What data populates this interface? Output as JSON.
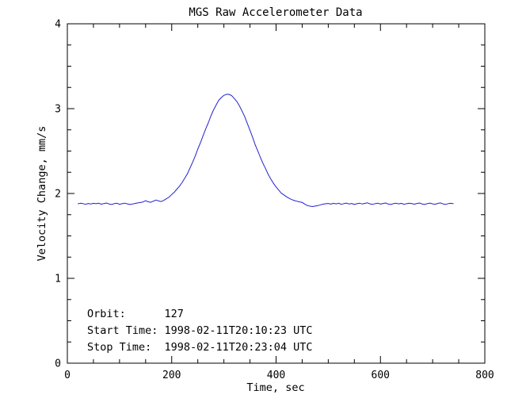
{
  "chart_data": {
    "type": "line",
    "title": "MGS Raw Accelerometer Data",
    "xlabel": "Time, sec",
    "ylabel": "Velocity Change, mm/s",
    "xlim": [
      0,
      800
    ],
    "ylim": [
      0,
      4
    ],
    "xticks": [
      0,
      200,
      400,
      600,
      800
    ],
    "yticks": [
      0,
      1,
      2,
      3,
      4
    ],
    "x_minor_step": 50,
    "y_minor_step": 0.25,
    "grid": false,
    "legend_position": "none",
    "line_color": "#2222cc",
    "axis_color": "#000000",
    "background_color": "#ffffff",
    "annotations": [
      {
        "text": "Orbit:      127"
      },
      {
        "text": "Start Time: 1998-02-11T20:10:23 UTC"
      },
      {
        "text": "Stop Time:  1998-02-11T20:23:04 UTC"
      }
    ],
    "series": [
      {
        "name": "velocity-change",
        "x": [
          20,
          25,
          30,
          35,
          40,
          45,
          50,
          55,
          60,
          65,
          70,
          75,
          80,
          85,
          90,
          95,
          100,
          105,
          110,
          115,
          120,
          125,
          130,
          135,
          140,
          145,
          150,
          155,
          160,
          165,
          170,
          175,
          180,
          185,
          190,
          195,
          200,
          205,
          210,
          215,
          220,
          225,
          230,
          235,
          240,
          245,
          250,
          255,
          260,
          265,
          270,
          275,
          280,
          285,
          290,
          295,
          300,
          305,
          310,
          315,
          320,
          325,
          330,
          335,
          340,
          345,
          350,
          355,
          360,
          365,
          370,
          375,
          380,
          385,
          390,
          395,
          400,
          405,
          410,
          415,
          420,
          425,
          430,
          435,
          440,
          445,
          450,
          455,
          460,
          465,
          470,
          475,
          480,
          485,
          490,
          495,
          500,
          505,
          510,
          515,
          520,
          525,
          530,
          535,
          540,
          545,
          550,
          555,
          560,
          565,
          570,
          575,
          580,
          585,
          590,
          595,
          600,
          605,
          610,
          615,
          620,
          625,
          630,
          635,
          640,
          645,
          650,
          655,
          660,
          665,
          670,
          675,
          680,
          685,
          690,
          695,
          700,
          705,
          710,
          715,
          720,
          725,
          730,
          735,
          740
        ],
        "y": [
          1.878,
          1.885,
          1.88,
          1.872,
          1.882,
          1.876,
          1.884,
          1.879,
          1.886,
          1.874,
          1.881,
          1.888,
          1.876,
          1.87,
          1.88,
          1.885,
          1.873,
          1.879,
          1.886,
          1.878,
          1.87,
          1.876,
          1.883,
          1.889,
          1.893,
          1.9,
          1.915,
          1.902,
          1.896,
          1.91,
          1.922,
          1.912,
          1.905,
          1.92,
          1.938,
          1.958,
          1.988,
          2.015,
          2.051,
          2.086,
          2.13,
          2.18,
          2.231,
          2.299,
          2.367,
          2.44,
          2.523,
          2.597,
          2.679,
          2.76,
          2.832,
          2.913,
          2.981,
          3.041,
          3.097,
          3.13,
          3.156,
          3.169,
          3.168,
          3.152,
          3.119,
          3.082,
          3.03,
          2.968,
          2.904,
          2.823,
          2.744,
          2.662,
          2.575,
          2.502,
          2.425,
          2.353,
          2.292,
          2.224,
          2.169,
          2.12,
          2.077,
          2.04,
          2.004,
          1.983,
          1.961,
          1.943,
          1.928,
          1.917,
          1.908,
          1.901,
          1.895,
          1.875,
          1.858,
          1.85,
          1.846,
          1.851,
          1.857,
          1.866,
          1.874,
          1.879,
          1.882,
          1.875,
          1.884,
          1.878,
          1.886,
          1.872,
          1.88,
          1.887,
          1.876,
          1.882,
          1.87,
          1.879,
          1.885,
          1.877,
          1.883,
          1.89,
          1.878,
          1.872,
          1.88,
          1.886,
          1.875,
          1.882,
          1.888,
          1.876,
          1.87,
          1.88,
          1.885,
          1.878,
          1.884,
          1.872,
          1.879,
          1.886,
          1.88,
          1.874,
          1.882,
          1.888,
          1.876,
          1.87,
          1.881,
          1.887,
          1.878,
          1.873,
          1.883,
          1.889,
          1.877,
          1.871,
          1.88,
          1.884,
          1.879
        ]
      }
    ]
  }
}
